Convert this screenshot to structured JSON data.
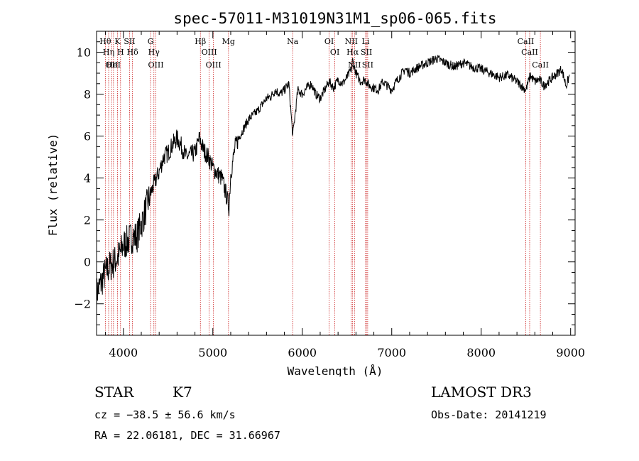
{
  "chart_data": {
    "type": "line",
    "title": "spec-57011-M31019N31M1_sp06-065.fits",
    "xlabel": "Wavelength (Å)",
    "ylabel": "Flux (relative)",
    "xlim": [
      3700,
      9050
    ],
    "ylim": [
      -3.5,
      11.0
    ],
    "xticks": [
      4000,
      5000,
      6000,
      7000,
      8000,
      9000
    ],
    "xtick_labels": [
      "4000",
      "5000",
      "6000",
      "7000",
      "8000",
      "9000"
    ],
    "yticks": [
      -2,
      0,
      2,
      4,
      6,
      8,
      10
    ],
    "ytick_labels": [
      "−2",
      "0",
      "2",
      "4",
      "6",
      "8",
      "10"
    ],
    "series": [
      {
        "name": "flux",
        "x": [
          3700,
          3750,
          3800,
          3850,
          3900,
          3950,
          4000,
          4050,
          4100,
          4150,
          4200,
          4250,
          4300,
          4350,
          4400,
          4450,
          4500,
          4550,
          4600,
          4650,
          4700,
          4750,
          4800,
          4850,
          4900,
          4950,
          5000,
          5050,
          5100,
          5150,
          5180,
          5200,
          5250,
          5300,
          5350,
          5400,
          5450,
          5500,
          5550,
          5600,
          5650,
          5700,
          5750,
          5800,
          5850,
          5893,
          5950,
          6000,
          6050,
          6100,
          6150,
          6200,
          6250,
          6300,
          6350,
          6400,
          6450,
          6500,
          6550,
          6563,
          6600,
          6650,
          6700,
          6750,
          6800,
          6850,
          6900,
          6950,
          7000,
          7050,
          7100,
          7150,
          7200,
          7300,
          7400,
          7500,
          7600,
          7700,
          7800,
          7900,
          8000,
          8100,
          8200,
          8300,
          8400,
          8450,
          8500,
          8550,
          8600,
          8650,
          8700,
          8750,
          8800,
          8850,
          8900,
          8950,
          8990
        ],
        "y": [
          -1.5,
          -1.0,
          -0.5,
          -0.2,
          0.0,
          0.3,
          0.8,
          1.0,
          1.2,
          1.2,
          1.8,
          2.5,
          3.2,
          3.8,
          4.3,
          5.0,
          5.2,
          5.6,
          5.9,
          5.5,
          5.0,
          5.1,
          5.2,
          5.9,
          5.3,
          5.0,
          4.5,
          4.2,
          4.0,
          3.2,
          2.6,
          4.2,
          5.5,
          6.0,
          6.4,
          6.8,
          7.0,
          7.2,
          7.5,
          7.8,
          7.9,
          8.2,
          8.0,
          8.2,
          8.5,
          6.0,
          8.2,
          8.0,
          8.3,
          8.5,
          8.0,
          7.8,
          8.2,
          8.6,
          8.3,
          8.7,
          8.5,
          8.8,
          9.2,
          9.6,
          9.0,
          8.6,
          8.7,
          8.4,
          8.3,
          8.2,
          8.6,
          8.4,
          8.2,
          8.6,
          8.9,
          9.2,
          9.0,
          9.3,
          9.5,
          9.7,
          9.5,
          9.3,
          9.5,
          9.3,
          9.2,
          9.0,
          8.8,
          8.9,
          8.6,
          8.4,
          8.2,
          8.9,
          8.6,
          8.7,
          8.4,
          8.6,
          8.8,
          9.0,
          9.2,
          8.4,
          8.9
        ]
      }
    ],
    "reference_lines": [
      {
        "wavelength": 3798,
        "label": "Hθ"
      },
      {
        "wavelength": 3835,
        "label": "Hη"
      },
      {
        "wavelength": 3869,
        "label": "OII"
      },
      {
        "wavelength": 3889,
        "label": "HeI"
      },
      {
        "wavelength": 3934,
        "label": "K"
      },
      {
        "wavelength": 3968,
        "label": "H"
      },
      {
        "wavelength": 4069,
        "label": "SII"
      },
      {
        "wavelength": 4102,
        "label": "Hδ"
      },
      {
        "wavelength": 4304,
        "label": "G"
      },
      {
        "wavelength": 4341,
        "label": "Hγ"
      },
      {
        "wavelength": 4363,
        "label": "OIII"
      },
      {
        "wavelength": 4861,
        "label": "Hβ"
      },
      {
        "wavelength": 4959,
        "label": "OIII"
      },
      {
        "wavelength": 5007,
        "label": "OIII"
      },
      {
        "wavelength": 5175,
        "label": "Mg"
      },
      {
        "wavelength": 5893,
        "label": "Na"
      },
      {
        "wavelength": 6300,
        "label": "OI"
      },
      {
        "wavelength": 6364,
        "label": "OI"
      },
      {
        "wavelength": 6548,
        "label": "NII"
      },
      {
        "wavelength": 6563,
        "label": "Hα"
      },
      {
        "wavelength": 6584,
        "label": "NII"
      },
      {
        "wavelength": 6708,
        "label": "Li"
      },
      {
        "wavelength": 6717,
        "label": "SII"
      },
      {
        "wavelength": 6731,
        "label": "SII"
      },
      {
        "wavelength": 8498,
        "label": "CaII"
      },
      {
        "wavelength": 8542,
        "label": "CaII"
      },
      {
        "wavelength": 8662,
        "label": "CaII"
      }
    ]
  },
  "info": {
    "class": "STAR",
    "subclass": "K7",
    "survey": "LAMOST DR3",
    "cz": "cz = −38.5 ± 56.6 km/s",
    "obs_date": "Obs-Date: 20141219",
    "coords": "RA =  22.06181, DEC =  31.66967"
  },
  "colors": {
    "reference_line": "#cc2020",
    "spectrum": "#000000"
  }
}
